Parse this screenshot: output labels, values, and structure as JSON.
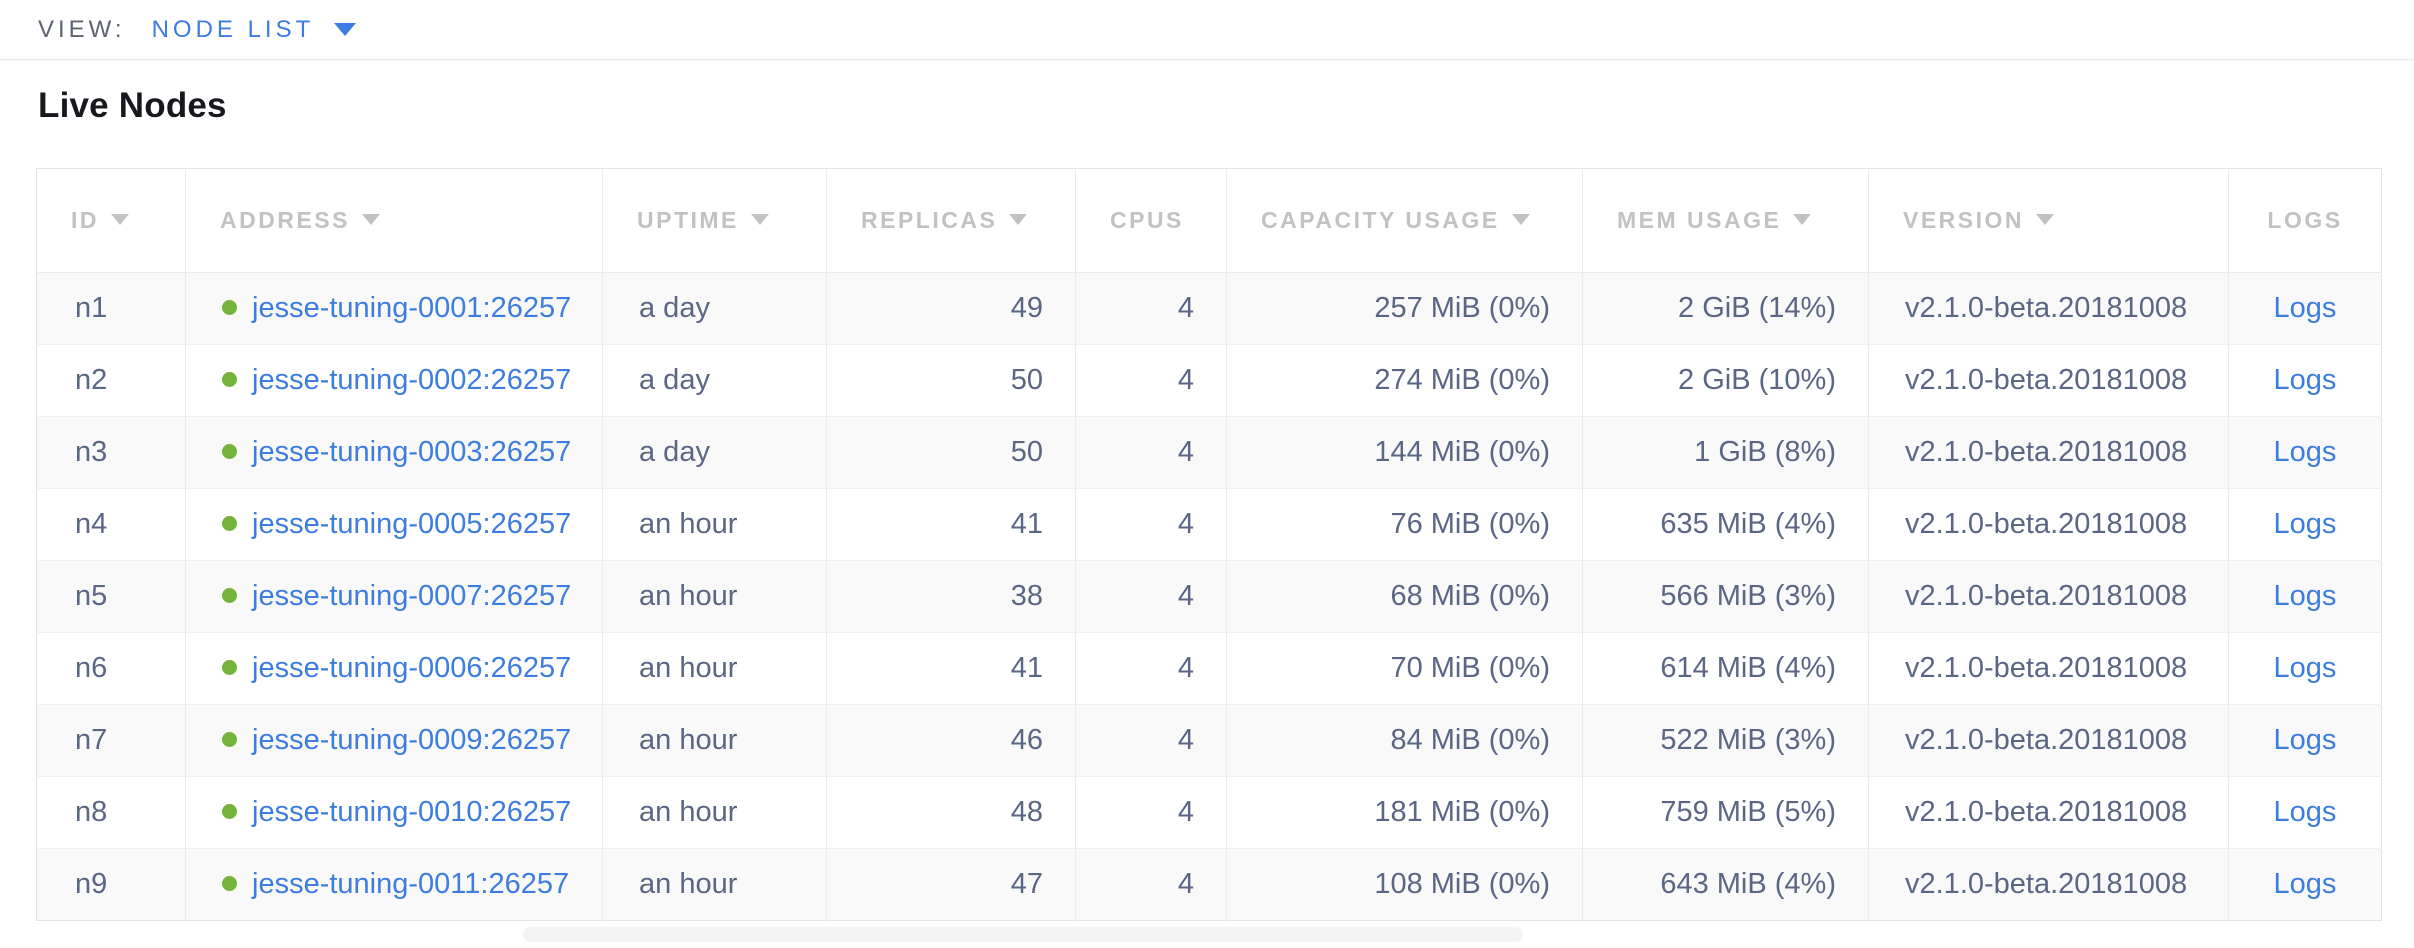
{
  "view_bar": {
    "label": "VIEW:",
    "selected": "NODE LIST"
  },
  "page": {
    "title": "Live Nodes"
  },
  "table": {
    "columns": [
      {
        "key": "id",
        "label": "ID",
        "sortable": true,
        "align": "left"
      },
      {
        "key": "address",
        "label": "ADDRESS",
        "sortable": true,
        "align": "left"
      },
      {
        "key": "uptime",
        "label": "UPTIME",
        "sortable": true,
        "align": "left"
      },
      {
        "key": "replicas",
        "label": "REPLICAS",
        "sortable": true,
        "align": "right"
      },
      {
        "key": "cpus",
        "label": "CPUS",
        "sortable": false,
        "align": "right"
      },
      {
        "key": "capacity",
        "label": "CAPACITY USAGE",
        "sortable": true,
        "align": "right"
      },
      {
        "key": "mem",
        "label": "MEM USAGE",
        "sortable": true,
        "align": "right"
      },
      {
        "key": "version",
        "label": "VERSION",
        "sortable": true,
        "align": "left"
      },
      {
        "key": "logs",
        "label": "LOGS",
        "sortable": false,
        "align": "center"
      }
    ],
    "rows": [
      {
        "id": "n1",
        "address": "jesse-tuning-0001:26257",
        "uptime": "a day",
        "replicas": "49",
        "cpus": "4",
        "capacity": "257 MiB (0%)",
        "mem": "2 GiB (14%)",
        "version": "v2.1.0-beta.20181008",
        "logs": "Logs"
      },
      {
        "id": "n2",
        "address": "jesse-tuning-0002:26257",
        "uptime": "a day",
        "replicas": "50",
        "cpus": "4",
        "capacity": "274 MiB (0%)",
        "mem": "2 GiB (10%)",
        "version": "v2.1.0-beta.20181008",
        "logs": "Logs"
      },
      {
        "id": "n3",
        "address": "jesse-tuning-0003:26257",
        "uptime": "a day",
        "replicas": "50",
        "cpus": "4",
        "capacity": "144 MiB (0%)",
        "mem": "1 GiB (8%)",
        "version": "v2.1.0-beta.20181008",
        "logs": "Logs"
      },
      {
        "id": "n4",
        "address": "jesse-tuning-0005:26257",
        "uptime": "an hour",
        "replicas": "41",
        "cpus": "4",
        "capacity": "76 MiB (0%)",
        "mem": "635 MiB (4%)",
        "version": "v2.1.0-beta.20181008",
        "logs": "Logs"
      },
      {
        "id": "n5",
        "address": "jesse-tuning-0007:26257",
        "uptime": "an hour",
        "replicas": "38",
        "cpus": "4",
        "capacity": "68 MiB (0%)",
        "mem": "566 MiB (3%)",
        "version": "v2.1.0-beta.20181008",
        "logs": "Logs"
      },
      {
        "id": "n6",
        "address": "jesse-tuning-0006:26257",
        "uptime": "an hour",
        "replicas": "41",
        "cpus": "4",
        "capacity": "70 MiB (0%)",
        "mem": "614 MiB (4%)",
        "version": "v2.1.0-beta.20181008",
        "logs": "Logs"
      },
      {
        "id": "n7",
        "address": "jesse-tuning-0009:26257",
        "uptime": "an hour",
        "replicas": "46",
        "cpus": "4",
        "capacity": "84 MiB (0%)",
        "mem": "522 MiB (3%)",
        "version": "v2.1.0-beta.20181008",
        "logs": "Logs"
      },
      {
        "id": "n8",
        "address": "jesse-tuning-0010:26257",
        "uptime": "an hour",
        "replicas": "48",
        "cpus": "4",
        "capacity": "181 MiB (0%)",
        "mem": "759 MiB (5%)",
        "version": "v2.1.0-beta.20181008",
        "logs": "Logs"
      },
      {
        "id": "n9",
        "address": "jesse-tuning-0011:26257",
        "uptime": "an hour",
        "replicas": "47",
        "cpus": "4",
        "capacity": "108 MiB (0%)",
        "mem": "643 MiB (4%)",
        "version": "v2.1.0-beta.20181008",
        "logs": "Logs"
      }
    ]
  },
  "icons": {
    "dropdown_arrow": "triangle-down",
    "sort_indicator": "triangle-down",
    "node_live_status": "green-dot"
  },
  "colors": {
    "accent_blue": "#3d7ce0",
    "live_green": "#76b33a",
    "cell_text": "#5b6684",
    "header_text": "#c2c2c2",
    "row_stripe": "#f9f9f9",
    "border": "#ebebeb"
  }
}
